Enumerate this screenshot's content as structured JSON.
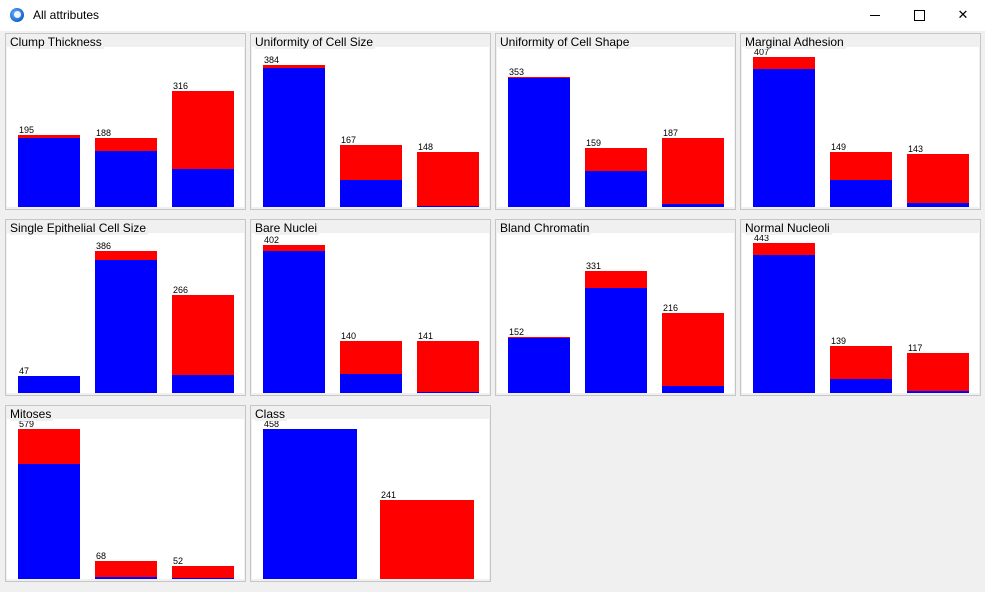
{
  "window": {
    "title": "All attributes",
    "icon": "app-globe-icon",
    "controls": [
      "minimize-icon",
      "maximize-icon",
      "close-icon"
    ]
  },
  "colors": {
    "class_a": "#0000ff",
    "class_b": "#ff0000"
  },
  "panels": [
    {
      "title": "Clump Thickness",
      "max": 407,
      "bars": [
        {
          "label": "195",
          "total": 195,
          "blue": 187
        },
        {
          "label": "188",
          "total": 188,
          "blue": 153
        },
        {
          "label": "316",
          "total": 316,
          "blue": 103
        }
      ]
    },
    {
      "title": "Uniformity of Cell Size",
      "max": 407,
      "bars": [
        {
          "label": "384",
          "total": 384,
          "blue": 376
        },
        {
          "label": "167",
          "total": 167,
          "blue": 73
        },
        {
          "label": "148",
          "total": 148,
          "blue": 4
        }
      ]
    },
    {
      "title": "Uniformity of Cell Shape",
      "max": 407,
      "bars": [
        {
          "label": "353",
          "total": 353,
          "blue": 351
        },
        {
          "label": "159",
          "total": 159,
          "blue": 98
        },
        {
          "label": "187",
          "total": 187,
          "blue": 9
        }
      ]
    },
    {
      "title": "Marginal Adhesion",
      "max": 407,
      "bars": [
        {
          "label": "407",
          "total": 407,
          "blue": 375
        },
        {
          "label": "149",
          "total": 149,
          "blue": 72
        },
        {
          "label": "143",
          "total": 143,
          "blue": 11
        }
      ]
    },
    {
      "title": "Single Epithelial Cell Size",
      "max": 407,
      "bars": [
        {
          "label": "47",
          "total": 47,
          "blue": 47
        },
        {
          "label": "386",
          "total": 386,
          "blue": 362
        },
        {
          "label": "266",
          "total": 266,
          "blue": 49
        }
      ]
    },
    {
      "title": "Bare Nuclei",
      "max": 407,
      "bars": [
        {
          "label": "402",
          "total": 402,
          "blue": 385
        },
        {
          "label": "140",
          "total": 140,
          "blue": 52
        },
        {
          "label": "141",
          "total": 141,
          "blue": 3
        }
      ]
    },
    {
      "title": "Bland Chromatin",
      "max": 407,
      "bars": [
        {
          "label": "152",
          "total": 152,
          "blue": 149
        },
        {
          "label": "331",
          "total": 331,
          "blue": 286
        },
        {
          "label": "216",
          "total": 216,
          "blue": 20
        }
      ]
    },
    {
      "title": "Normal Nucleoli",
      "max": 443,
      "bars": [
        {
          "label": "443",
          "total": 443,
          "blue": 409
        },
        {
          "label": "139",
          "total": 139,
          "blue": 40
        },
        {
          "label": "117",
          "total": 117,
          "blue": 6
        }
      ]
    },
    {
      "title": "Mitoses",
      "max": 579,
      "bars": [
        {
          "label": "579",
          "total": 579,
          "blue": 445
        },
        {
          "label": "68",
          "total": 68,
          "blue": 9
        },
        {
          "label": "52",
          "total": 52,
          "blue": 4
        }
      ]
    },
    {
      "title": "Class",
      "max": 458,
      "bars": [
        {
          "label": "458",
          "total": 458,
          "blue": 458
        },
        {
          "label": "241",
          "total": 241,
          "blue": 0
        }
      ]
    }
  ]
}
